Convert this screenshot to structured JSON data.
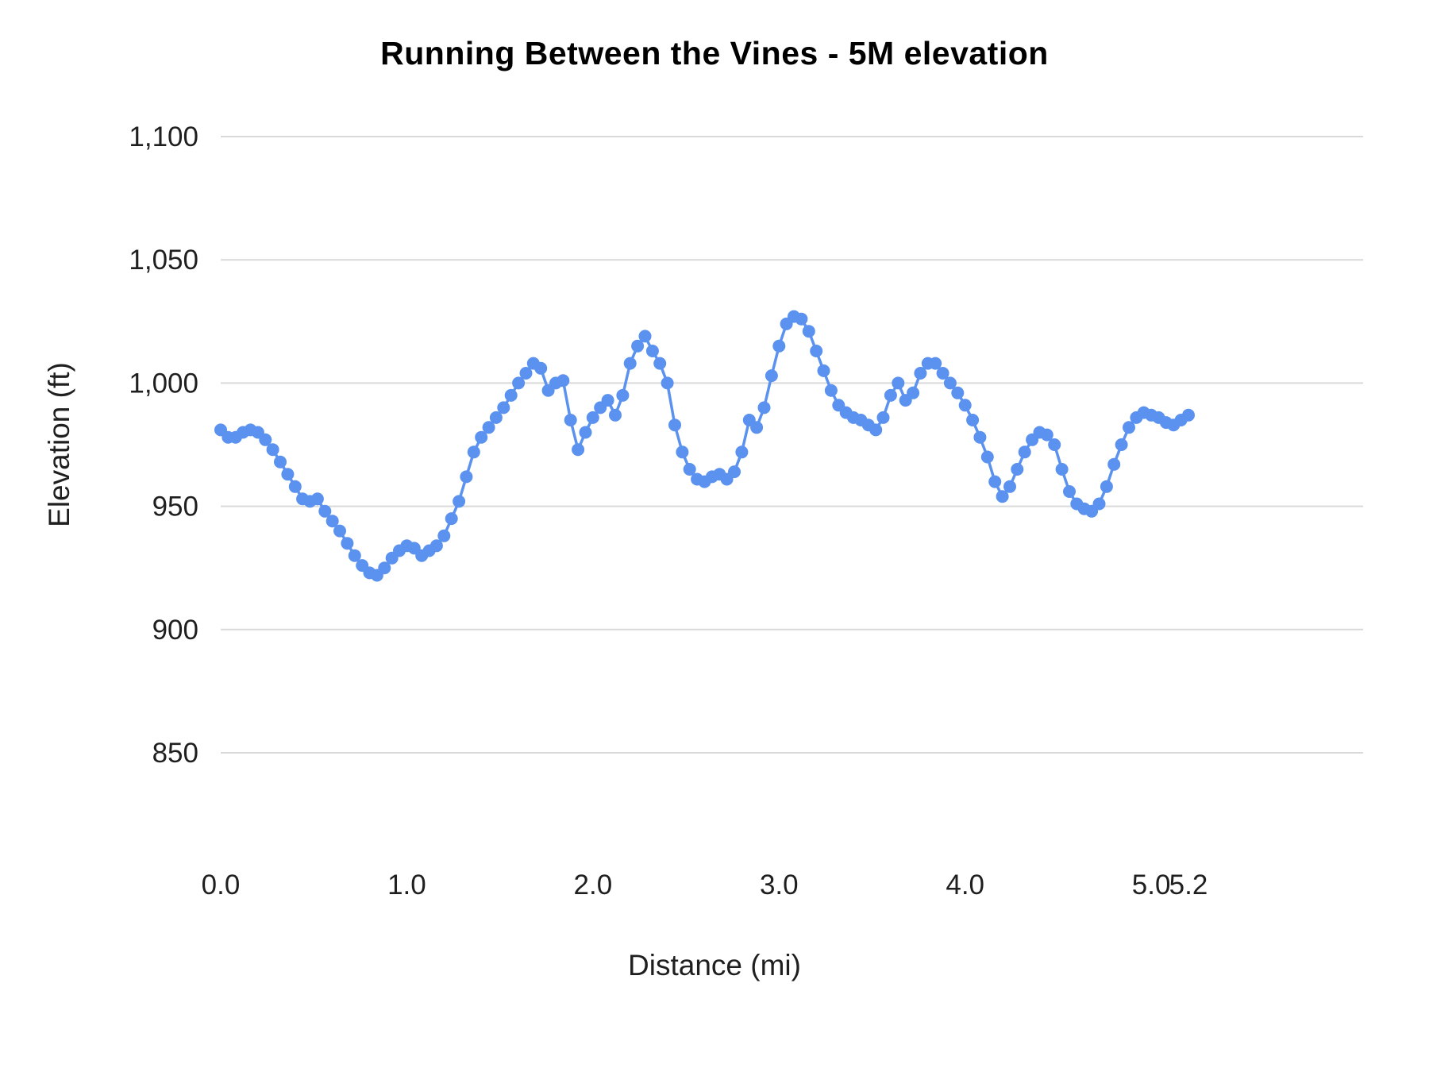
{
  "page": {
    "background": "#ffffff"
  },
  "chart_data": {
    "type": "line",
    "title": "Running Between the Vines - 5M elevation",
    "xlabel": "Distance (mi)",
    "ylabel": "Elevation (ft)",
    "legend": "none",
    "grid": "horizontal",
    "marker": "circle",
    "xlim": [
      0,
      5.2
    ],
    "ylim": [
      850,
      1100
    ],
    "x_start": 0,
    "x_step": 0.04,
    "x_end": 5.2,
    "values": [
      981,
      978,
      978,
      980,
      981,
      980,
      977,
      973,
      968,
      963,
      958,
      953,
      952,
      953,
      948,
      944,
      940,
      935,
      930,
      926,
      923,
      922,
      925,
      929,
      932,
      934,
      933,
      930,
      932,
      934,
      938,
      945,
      952,
      962,
      972,
      978,
      982,
      986,
      990,
      995,
      1000,
      1004,
      1008,
      1006,
      997,
      1000,
      1001,
      985,
      973,
      980,
      986,
      990,
      993,
      987,
      995,
      1008,
      1015,
      1019,
      1013,
      1008,
      1000,
      983,
      972,
      965,
      961,
      960,
      962,
      963,
      961,
      964,
      972,
      985,
      982,
      990,
      1003,
      1015,
      1024,
      1027,
      1026,
      1021,
      1013,
      1005,
      997,
      991,
      988,
      986,
      985,
      983,
      981,
      986,
      995,
      1000,
      993,
      996,
      1004,
      1008,
      1008,
      1004,
      1000,
      996,
      991,
      985,
      978,
      970,
      960,
      954,
      958,
      965,
      972,
      977,
      980,
      979,
      975,
      965,
      956,
      951,
      949,
      948,
      951,
      958,
      967,
      975,
      982,
      986,
      988,
      987,
      986,
      984,
      983,
      985,
      987
    ],
    "x_ticks": {
      "values": [
        0,
        1,
        2,
        3,
        4,
        5,
        5.2
      ],
      "labels": [
        "0.0",
        "1.0",
        "2.0",
        "3.0",
        "4.0",
        "5.0",
        "5.2"
      ]
    },
    "y_ticks": {
      "values": [
        850,
        900,
        950,
        1000,
        1050,
        1100
      ],
      "labels": [
        "850",
        "900",
        "950",
        "1,000",
        "1,050",
        "1,100"
      ]
    },
    "style": {
      "line_color": "#5b92ef",
      "marker_color": "#5b92ef",
      "grid_color": "#d9d9d9",
      "tick_text_color": "#1f1f1f",
      "title_color": "#000000"
    }
  }
}
